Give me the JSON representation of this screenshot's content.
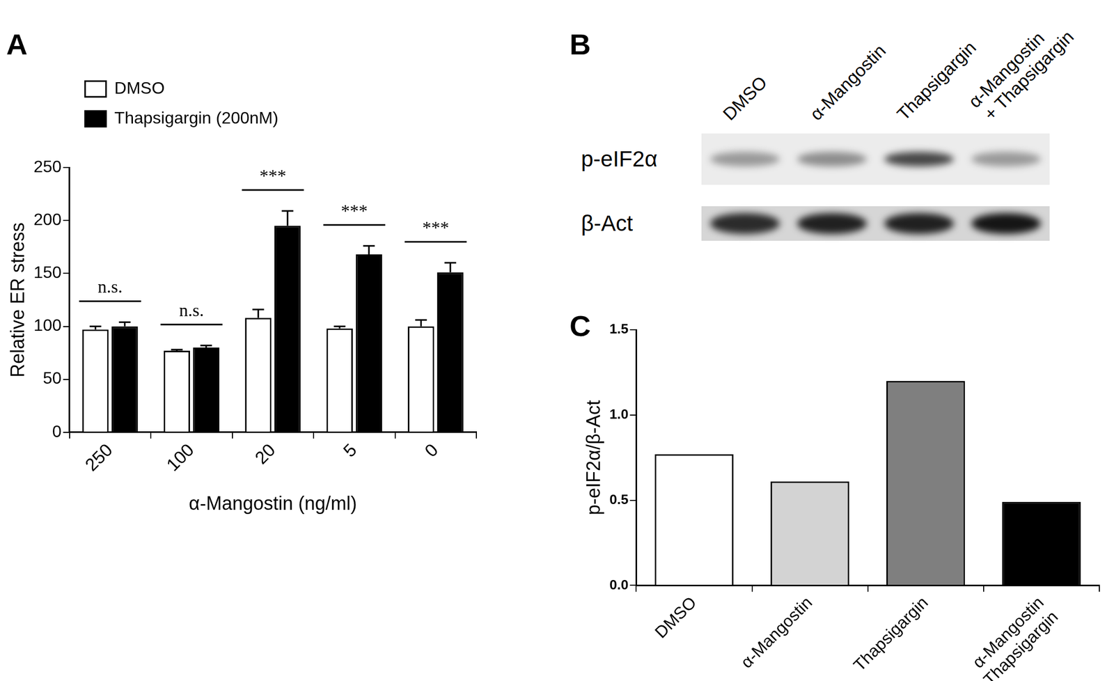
{
  "chart_data": [
    {
      "title": "A",
      "type": "bar",
      "categories": [
        "250",
        "100",
        "20",
        "5",
        "0"
      ],
      "x_label": "α-Mangostin (ng/ml)",
      "y_label": "Relative ER stress",
      "series": [
        {
          "name": "DMSO",
          "color": "#ffffff",
          "values": [
            97,
            77,
            108,
            98,
            100
          ],
          "errors": [
            3,
            1,
            8,
            2,
            6
          ]
        },
        {
          "name": "Thapsigargin (200nM)",
          "color": "#000000",
          "values": [
            100,
            80,
            195,
            168,
            151
          ],
          "errors": [
            4,
            2,
            14,
            8,
            9
          ]
        }
      ],
      "ylim": [
        0,
        250
      ],
      "yticks": [
        0,
        50,
        100,
        150,
        200,
        250
      ],
      "grid": false,
      "legend": "upper left",
      "annotations": [
        {
          "category": "250",
          "text": "n.s."
        },
        {
          "category": "100",
          "text": "n.s."
        },
        {
          "category": "20",
          "text": "***"
        },
        {
          "category": "5",
          "text": "***"
        },
        {
          "category": "0",
          "text": "***"
        }
      ]
    },
    {
      "title": "C",
      "type": "bar",
      "categories": [
        "DMSO",
        "α-Mangostin",
        "Thapsigargin",
        [
          "α-Mangostin",
          "+ Thapsigargin"
        ]
      ],
      "values": [
        0.77,
        0.61,
        1.2,
        0.49
      ],
      "colors": [
        "#ffffff",
        "#d3d3d3",
        "#7f7f7f",
        "#000000"
      ],
      "y_label": "p-eIF2α/β-Act",
      "ylim": [
        0,
        1.5
      ],
      "yticks": [
        {
          "value": 0,
          "label": "0.0"
        },
        {
          "value": 0.5,
          "label": "0.5"
        },
        {
          "value": 1.0,
          "label": "1.0"
        },
        {
          "value": 1.5,
          "label": "1.5"
        }
      ],
      "grid": false
    }
  ],
  "blot": {
    "title": "B",
    "lanes": [
      "DMSO",
      "α-Mangostin",
      "Thapsigargin",
      [
        "α-Mangostin",
        "+ Thapsigargin"
      ]
    ],
    "rows": [
      {
        "label": "p-eIF2α",
        "band_intensity": [
          0.35,
          0.4,
          0.7,
          0.35
        ]
      },
      {
        "label": "β-Act",
        "band_intensity": [
          0.8,
          0.85,
          0.85,
          0.9
        ]
      }
    ]
  }
}
